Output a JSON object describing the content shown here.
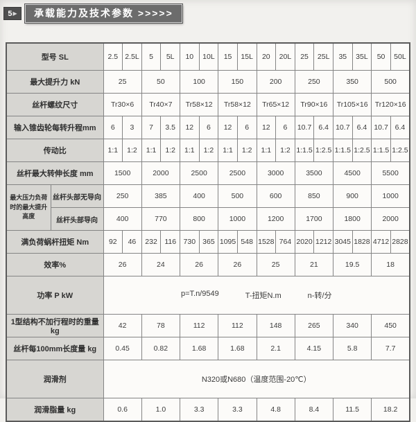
{
  "banner": {
    "number": "5",
    "arrow": "▶",
    "title": "承载能力及技术参数 >>>>>"
  },
  "table": {
    "rows": [
      {
        "label": "型号 SL",
        "span": 1,
        "first": true,
        "values": [
          "2.5",
          "2.5L",
          "5",
          "5L",
          "10",
          "10L",
          "15",
          "15L",
          "20",
          "20L",
          "25",
          "25L",
          "35",
          "35L",
          "50",
          "50L"
        ]
      },
      {
        "label": "最大提升力 kN",
        "span": 2,
        "values": [
          "25",
          "50",
          "100",
          "150",
          "200",
          "250",
          "350",
          "500"
        ]
      },
      {
        "label": "丝杆螺纹尺寸",
        "span": 2,
        "values": [
          "Tr30×6",
          "Tr40×7",
          "Tr58×12",
          "Tr58×12",
          "Tr65×12",
          "Tr90×16",
          "Tr105×16",
          "Tr120×16"
        ]
      },
      {
        "label": "输入锥齿轮每转升程mm",
        "span": 1,
        "values": [
          "6",
          "3",
          "7",
          "3.5",
          "12",
          "6",
          "12",
          "6",
          "12",
          "6",
          "10.7",
          "6.4",
          "10.7",
          "6.4",
          "10.7",
          "6.4"
        ]
      },
      {
        "label": "传动比",
        "span": 1,
        "values": [
          "1:1",
          "1:2",
          "1:1",
          "1:2",
          "1:1",
          "1:2",
          "1:1",
          "1:2",
          "1:1",
          "1:2",
          "1:1.5",
          "1:2.5",
          "1:1.5",
          "1:2.5",
          "1:1.5",
          "1:2.5"
        ]
      },
      {
        "label": "丝杆最大转伸长度 mm",
        "span": 2,
        "values": [
          "1500",
          "2000",
          "2500",
          "2500",
          "3000",
          "3500",
          "4500",
          "5500"
        ]
      },
      {
        "group": "最大压力负荷时的最大提升高度",
        "label": "丝杆头部无导向",
        "span": 2,
        "values": [
          "250",
          "385",
          "400",
          "500",
          "600",
          "850",
          "900",
          "1000"
        ]
      },
      {
        "group_cont": true,
        "label": "丝杆头部导向",
        "span": 2,
        "values": [
          "400",
          "770",
          "800",
          "1000",
          "1200",
          "1700",
          "1800",
          "2000"
        ]
      },
      {
        "label": "满负荷蜗杆扭矩 Nm",
        "span": 1,
        "values": [
          "92",
          "46",
          "232",
          "116",
          "730",
          "365",
          "1095",
          "548",
          "1528",
          "764",
          "2020",
          "1212",
          "3045",
          "1828",
          "4712",
          "2828"
        ]
      },
      {
        "label": "效率%",
        "span": 2,
        "values": [
          "26",
          "24",
          "26",
          "26",
          "25",
          "21",
          "19.5",
          "18"
        ]
      },
      {
        "label": "功率 P kW",
        "span": 16,
        "tall": true,
        "formula": true,
        "values": [
          "p=T.n/9549",
          "T-扭矩N.m",
          "n-转/分"
        ]
      },
      {
        "label": "1型结构不加行程时的重量 kg",
        "span": 2,
        "values": [
          "42",
          "78",
          "112",
          "112",
          "148",
          "265",
          "340",
          "450"
        ]
      },
      {
        "label": "丝杆每100mm长度量 kg",
        "span": 2,
        "values": [
          "0.45",
          "0.82",
          "1.68",
          "1.68",
          "2.1",
          "4.15",
          "5.8",
          "7.7"
        ]
      },
      {
        "label": "润滑剂",
        "span": 16,
        "tall": true,
        "values": [
          "N320或N680（温度范围-20℃）"
        ]
      },
      {
        "label": "润滑脂量 kg",
        "span": 2,
        "values": [
          "0.6",
          "1.0",
          "3.3",
          "3.3",
          "4.8",
          "8.4",
          "11.5",
          "18.2"
        ]
      }
    ]
  }
}
